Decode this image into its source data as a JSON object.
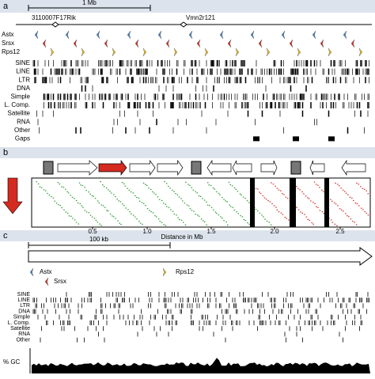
{
  "panel_a": {
    "label": "a",
    "scale": "1 Mb",
    "genes": [
      "3110007F17Rik",
      "Vmn2r121"
    ],
    "families": [
      "Astx",
      "Srsx",
      "Rps12"
    ],
    "tracks": [
      "SINE",
      "LINE",
      "LTR",
      "DNA",
      "Simple",
      "L. Comp.",
      "Satellite",
      "RNA",
      "Other",
      "Gaps"
    ]
  },
  "panel_b": {
    "label": "b",
    "xticks": [
      "0.5",
      "1.0",
      "1.5",
      "2.0",
      "2.5"
    ],
    "xlabel": "Distance in Mb"
  },
  "panel_c": {
    "label": "c",
    "scale": "100 kb",
    "legend": [
      "Astx",
      "Srsx",
      "Rps12"
    ],
    "tracks": [
      "SINE",
      "LINE",
      "LTR",
      "DNA",
      "Simple",
      "L. Comp.",
      "Satellite",
      "RNA",
      "Other"
    ],
    "gc_label": "% GC"
  }
}
